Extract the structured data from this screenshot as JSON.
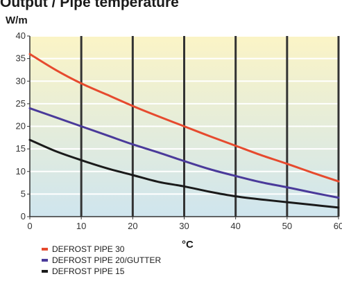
{
  "cut_title": "Output / Pipe temperature",
  "chart_data": {
    "type": "line",
    "ylabel": "W/m",
    "xlabel": "°C",
    "xlim": [
      0,
      60
    ],
    "ylim": [
      0,
      40
    ],
    "x_ticks": [
      "0",
      "10",
      "20",
      "30",
      "40",
      "50",
      "60"
    ],
    "y_ticks": [
      "0",
      "5",
      "10",
      "15",
      "20",
      "25",
      "30",
      "35",
      "40"
    ],
    "grid": true,
    "legend_position": "bottom-left",
    "background_gradient": [
      "#fbf4c6",
      "#cfe5ee"
    ],
    "series": [
      {
        "name": "DEFROST PIPE 30",
        "color": "#e64a2e",
        "x": [
          0,
          5,
          10,
          15,
          20,
          25,
          30,
          35,
          40,
          45,
          50,
          55,
          60
        ],
        "y": [
          36,
          32.5,
          29.5,
          27,
          24.5,
          22.2,
          20,
          17.8,
          15.7,
          13.6,
          11.7,
          9.7,
          7.8
        ]
      },
      {
        "name": "DEFROST PIPE 20/GUTTER",
        "color": "#4a3a9a",
        "x": [
          0,
          5,
          10,
          15,
          20,
          25,
          30,
          35,
          40,
          45,
          50,
          55,
          60
        ],
        "y": [
          24,
          22,
          20,
          18,
          16,
          14.2,
          12.3,
          10.5,
          9,
          7.6,
          6.5,
          5.3,
          4.2
        ]
      },
      {
        "name": "DEFROST PIPE 15",
        "color": "#1a1a1a",
        "x": [
          0,
          5,
          10,
          15,
          20,
          25,
          30,
          35,
          40,
          45,
          50,
          55,
          60
        ],
        "y": [
          17,
          14.5,
          12.5,
          10.7,
          9.2,
          7.7,
          6.7,
          5.5,
          4.5,
          3.8,
          3.2,
          2.6,
          2
        ]
      }
    ]
  }
}
